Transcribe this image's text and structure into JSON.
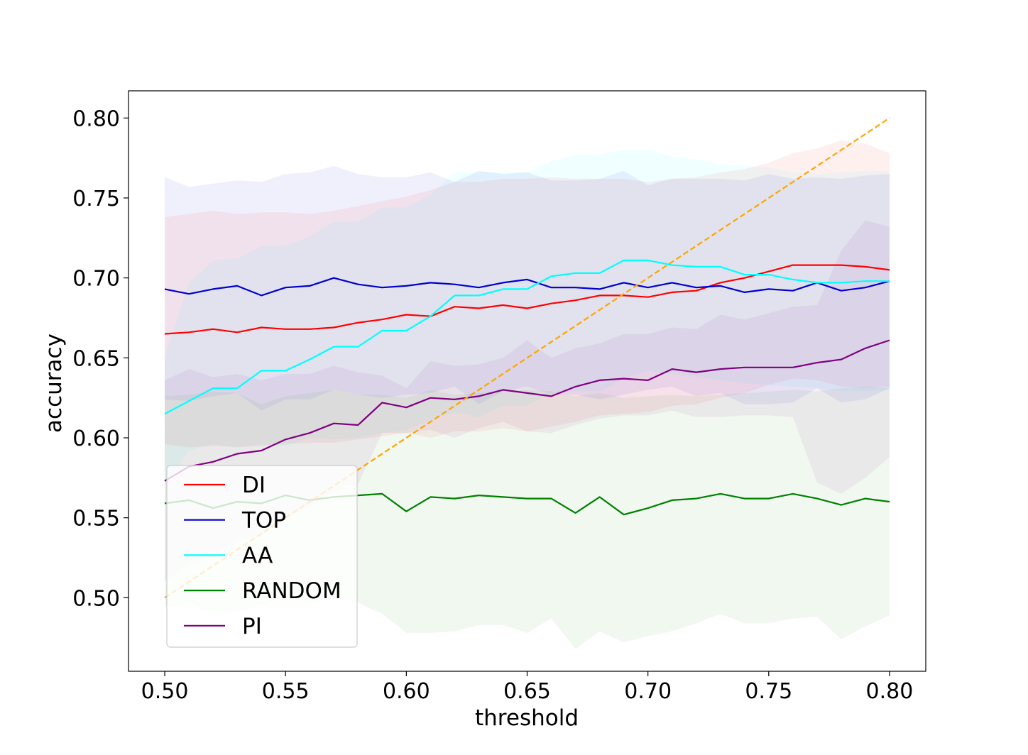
{
  "chart_data": {
    "type": "line",
    "title": "",
    "xlabel": "threshold",
    "ylabel": "accuracy",
    "xlim": [
      0.485,
      0.815
    ],
    "ylim": [
      0.454,
      0.817
    ],
    "x_ticks": [
      0.5,
      0.55,
      0.6,
      0.65,
      0.7,
      0.75,
      0.8
    ],
    "x_tick_labels": [
      "0.50",
      "0.55",
      "0.60",
      "0.65",
      "0.70",
      "0.75",
      "0.80"
    ],
    "y_ticks": [
      0.5,
      0.55,
      0.6,
      0.65,
      0.7,
      0.75,
      0.8
    ],
    "y_tick_labels": [
      "0.50",
      "0.55",
      "0.60",
      "0.65",
      "0.70",
      "0.75",
      "0.80"
    ],
    "grid": false,
    "legend_position": "lower-left",
    "x": [
      0.5,
      0.51,
      0.52,
      0.53,
      0.54,
      0.55,
      0.56,
      0.57,
      0.58,
      0.59,
      0.6,
      0.61,
      0.62,
      0.63,
      0.64,
      0.65,
      0.66,
      0.67,
      0.68,
      0.69,
      0.7,
      0.71,
      0.72,
      0.73,
      0.74,
      0.75,
      0.76,
      0.77,
      0.78,
      0.79,
      0.8
    ],
    "series": [
      {
        "name": "DI",
        "color": "#ff0000",
        "values": [
          0.665,
          0.666,
          0.668,
          0.666,
          0.669,
          0.668,
          0.668,
          0.669,
          0.672,
          0.674,
          0.677,
          0.676,
          0.682,
          0.681,
          0.683,
          0.681,
          0.684,
          0.686,
          0.689,
          0.689,
          0.688,
          0.691,
          0.692,
          0.697,
          0.7,
          0.704,
          0.708,
          0.708,
          0.708,
          0.707,
          0.705
        ],
        "band_upper": [
          0.738,
          0.74,
          0.742,
          0.74,
          0.741,
          0.741,
          0.74,
          0.742,
          0.745,
          0.748,
          0.751,
          0.755,
          0.76,
          0.76,
          0.762,
          0.762,
          0.763,
          0.762,
          0.762,
          0.762,
          0.76,
          0.762,
          0.763,
          0.766,
          0.768,
          0.772,
          0.778,
          0.781,
          0.786,
          0.784,
          0.778
        ],
        "band_lower": [
          0.596,
          0.594,
          0.595,
          0.594,
          0.595,
          0.596,
          0.597,
          0.597,
          0.599,
          0.601,
          0.603,
          0.6,
          0.604,
          0.604,
          0.606,
          0.604,
          0.607,
          0.61,
          0.614,
          0.615,
          0.616,
          0.62,
          0.621,
          0.625,
          0.628,
          0.633,
          0.637,
          0.636,
          0.632,
          0.631,
          0.632
        ]
      },
      {
        "name": "TOP",
        "color": "#0000cc",
        "values": [
          0.693,
          0.69,
          0.693,
          0.695,
          0.689,
          0.694,
          0.695,
          0.7,
          0.696,
          0.694,
          0.695,
          0.697,
          0.696,
          0.694,
          0.697,
          0.699,
          0.694,
          0.694,
          0.693,
          0.697,
          0.694,
          0.697,
          0.694,
          0.695,
          0.691,
          0.693,
          0.692,
          0.697,
          0.692,
          0.694,
          0.698
        ],
        "band_upper": [
          0.763,
          0.757,
          0.759,
          0.761,
          0.76,
          0.765,
          0.766,
          0.77,
          0.765,
          0.763,
          0.763,
          0.766,
          0.76,
          0.767,
          0.765,
          0.766,
          0.761,
          0.761,
          0.762,
          0.767,
          0.758,
          0.762,
          0.762,
          0.762,
          0.761,
          0.765,
          0.762,
          0.763,
          0.762,
          0.764,
          0.765
        ],
        "band_lower": [
          0.624,
          0.623,
          0.626,
          0.628,
          0.617,
          0.624,
          0.624,
          0.63,
          0.627,
          0.625,
          0.627,
          0.628,
          0.632,
          0.621,
          0.629,
          0.632,
          0.627,
          0.627,
          0.624,
          0.627,
          0.63,
          0.632,
          0.626,
          0.628,
          0.621,
          0.621,
          0.622,
          0.631,
          0.622,
          0.624,
          0.631
        ]
      },
      {
        "name": "AA",
        "color": "#00ffff",
        "values": [
          0.615,
          0.623,
          0.631,
          0.631,
          0.642,
          0.642,
          0.649,
          0.657,
          0.657,
          0.667,
          0.667,
          0.676,
          0.689,
          0.689,
          0.693,
          0.693,
          0.701,
          0.703,
          0.703,
          0.711,
          0.711,
          0.708,
          0.707,
          0.707,
          0.702,
          0.702,
          0.699,
          0.697,
          0.697,
          0.698,
          0.698
        ],
        "band_upper": [
          0.65,
          0.697,
          0.711,
          0.712,
          0.72,
          0.72,
          0.726,
          0.735,
          0.735,
          0.744,
          0.744,
          0.752,
          0.766,
          0.766,
          0.766,
          0.766,
          0.773,
          0.777,
          0.777,
          0.78,
          0.78,
          0.776,
          0.774,
          0.771,
          0.77,
          0.769,
          0.766,
          0.765,
          0.766,
          0.767,
          0.767
        ],
        "band_lower": [
          0.57,
          0.592,
          0.596,
          0.594,
          0.596,
          0.595,
          0.6,
          0.599,
          0.6,
          0.603,
          0.605,
          0.611,
          0.616,
          0.613,
          0.62,
          0.62,
          0.628,
          0.629,
          0.629,
          0.637,
          0.642,
          0.64,
          0.638,
          0.636,
          0.634,
          0.633,
          0.632,
          0.631,
          0.629,
          0.629,
          0.63
        ]
      },
      {
        "name": "RANDOM",
        "color": "#008000",
        "values": [
          0.559,
          0.561,
          0.556,
          0.56,
          0.559,
          0.564,
          0.561,
          0.563,
          0.564,
          0.565,
          0.554,
          0.563,
          0.562,
          0.564,
          0.563,
          0.562,
          0.562,
          0.553,
          0.563,
          0.552,
          0.556,
          0.561,
          0.562,
          0.565,
          0.562,
          0.562,
          0.565,
          0.562,
          0.558,
          0.562,
          0.56
        ],
        "band_upper": [
          0.626,
          0.627,
          0.629,
          0.628,
          0.621,
          0.626,
          0.628,
          0.63,
          0.627,
          0.627,
          0.625,
          0.63,
          0.627,
          0.628,
          0.629,
          0.63,
          0.629,
          0.626,
          0.628,
          0.625,
          0.626,
          0.627,
          0.626,
          0.627,
          0.628,
          0.629,
          0.63,
          0.629,
          0.631,
          0.632,
          0.631
        ],
        "band_lower": [
          0.494,
          0.496,
          0.49,
          0.491,
          0.495,
          0.5,
          0.496,
          0.5,
          0.497,
          0.49,
          0.478,
          0.478,
          0.479,
          0.483,
          0.483,
          0.478,
          0.487,
          0.468,
          0.479,
          0.472,
          0.476,
          0.479,
          0.484,
          0.49,
          0.484,
          0.484,
          0.487,
          0.488,
          0.474,
          0.482,
          0.489
        ]
      },
      {
        "name": "PI",
        "color": "#800080",
        "values": [
          0.573,
          0.582,
          0.585,
          0.59,
          0.592,
          0.599,
          0.603,
          0.609,
          0.608,
          0.622,
          0.619,
          0.625,
          0.624,
          0.626,
          0.63,
          0.628,
          0.626,
          0.632,
          0.636,
          0.637,
          0.636,
          0.643,
          0.641,
          0.643,
          0.644,
          0.644,
          0.644,
          0.647,
          0.649,
          0.656,
          0.661
        ],
        "band_upper": [
          0.636,
          0.643,
          0.638,
          0.64,
          0.636,
          0.64,
          0.64,
          0.645,
          0.641,
          0.639,
          0.631,
          0.648,
          0.645,
          0.646,
          0.65,
          0.661,
          0.65,
          0.656,
          0.659,
          0.665,
          0.665,
          0.669,
          0.668,
          0.677,
          0.674,
          0.678,
          0.682,
          0.683,
          0.717,
          0.736,
          0.732
        ],
        "band_lower": [
          0.51,
          0.521,
          0.526,
          0.536,
          0.538,
          0.55,
          0.557,
          0.566,
          0.571,
          0.603,
          0.603,
          0.605,
          0.6,
          0.606,
          0.61,
          0.604,
          0.603,
          0.608,
          0.612,
          0.614,
          0.614,
          0.617,
          0.613,
          0.613,
          0.614,
          0.614,
          0.613,
          0.572,
          0.565,
          0.575,
          0.588
        ]
      }
    ],
    "reference_line": {
      "color": "#ffa500",
      "style": "dashed",
      "x": [
        0.5,
        0.8
      ],
      "y": [
        0.5,
        0.8
      ]
    }
  }
}
